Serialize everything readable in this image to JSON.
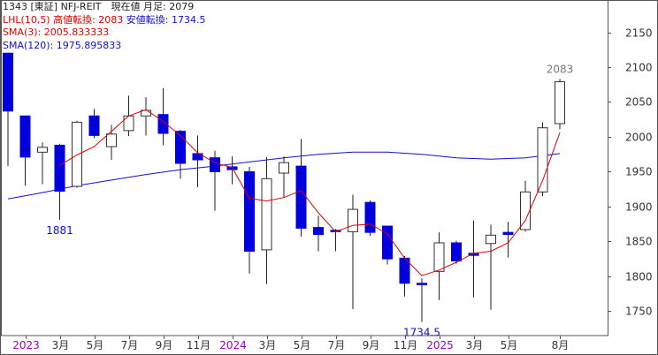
{
  "legend": {
    "line1": "1343 [東証] NFJ-REIT　現在値 月足: 2079",
    "line2_prefix": "LHL(10,5) 高値転換: 2083",
    "line2_suffix": "安値転換: 1734.5",
    "line3": "SMA(3): 2005.833333",
    "line4": "SMA(120): 1975.895833"
  },
  "colors": {
    "up_body": "#ffffff",
    "down_body": "#0000dd",
    "wick": "#222222",
    "sma3": "#e00000",
    "sma120": "#1010d0",
    "year_label": "#9900cc",
    "annotation_blue": "#1010d0",
    "annotation_gray": "#777777"
  },
  "chart_data": {
    "type": "candlestick",
    "ylim": [
      1715,
      2195
    ],
    "yticks": [
      1750,
      1800,
      1850,
      1900,
      1950,
      2000,
      2050,
      2100,
      2150
    ],
    "x_labels": [
      {
        "index": 1,
        "text": "2023",
        "year": true
      },
      {
        "index": 3,
        "text": "3月",
        "year": false
      },
      {
        "index": 5,
        "text": "5月",
        "year": false
      },
      {
        "index": 7,
        "text": "7月",
        "year": false
      },
      {
        "index": 9,
        "text": "9月",
        "year": false
      },
      {
        "index": 11,
        "text": "11月",
        "year": false
      },
      {
        "index": 13,
        "text": "2024",
        "year": true
      },
      {
        "index": 15,
        "text": "3月",
        "year": false
      },
      {
        "index": 17,
        "text": "5月",
        "year": false
      },
      {
        "index": 19,
        "text": "7月",
        "year": false
      },
      {
        "index": 21,
        "text": "9月",
        "year": false
      },
      {
        "index": 23,
        "text": "11月",
        "year": false
      },
      {
        "index": 25,
        "text": "2025",
        "year": true
      },
      {
        "index": 27,
        "text": "3月",
        "year": false
      },
      {
        "index": 29,
        "text": "5月",
        "year": false
      },
      {
        "index": 32,
        "text": "8月",
        "year": false
      }
    ],
    "candles": [
      {
        "o": 2120,
        "h": 2120,
        "l": 1958,
        "c": 2037
      },
      {
        "o": 2030,
        "h": 2030,
        "l": 1930,
        "c": 1971
      },
      {
        "o": 1978,
        "h": 1992,
        "l": 1932,
        "c": 1985
      },
      {
        "o": 1988,
        "h": 1990,
        "l": 1881,
        "c": 1922
      },
      {
        "o": 1929,
        "h": 2023,
        "l": 1927,
        "c": 2021
      },
      {
        "o": 2030,
        "h": 2040,
        "l": 1998,
        "c": 2002
      },
      {
        "o": 1986,
        "h": 2017,
        "l": 1967,
        "c": 2004
      },
      {
        "o": 2009,
        "h": 2059,
        "l": 2001,
        "c": 2030
      },
      {
        "o": 2030,
        "h": 2057,
        "l": 2002,
        "c": 2038
      },
      {
        "o": 2032,
        "h": 2070,
        "l": 1988,
        "c": 2005
      },
      {
        "o": 2008,
        "h": 2010,
        "l": 1940,
        "c": 1962
      },
      {
        "o": 1976,
        "h": 2002,
        "l": 1928,
        "c": 1967
      },
      {
        "o": 1970,
        "h": 1980,
        "l": 1894,
        "c": 1950
      },
      {
        "o": 1957,
        "h": 1972,
        "l": 1932,
        "c": 1953
      },
      {
        "o": 1950,
        "h": 1957,
        "l": 1804,
        "c": 1836
      },
      {
        "o": 1838,
        "h": 1971,
        "l": 1789,
        "c": 1940
      },
      {
        "o": 1948,
        "h": 1972,
        "l": 1913,
        "c": 1963
      },
      {
        "o": 1958,
        "h": 1997,
        "l": 1857,
        "c": 1869
      },
      {
        "o": 1870,
        "h": 1887,
        "l": 1836,
        "c": 1860
      },
      {
        "o": 1866,
        "h": 1868,
        "l": 1836,
        "c": 1864
      },
      {
        "o": 1864,
        "h": 1917,
        "l": 1753,
        "c": 1896
      },
      {
        "o": 1906,
        "h": 1909,
        "l": 1858,
        "c": 1863
      },
      {
        "o": 1872,
        "h": 1872,
        "l": 1817,
        "c": 1825
      },
      {
        "o": 1826,
        "h": 1829,
        "l": 1771,
        "c": 1790
      },
      {
        "o": 1790,
        "h": 1797,
        "l": 1734.5,
        "c": 1788
      },
      {
        "o": 1807,
        "h": 1863,
        "l": 1766,
        "c": 1848
      },
      {
        "o": 1848,
        "h": 1851,
        "l": 1818,
        "c": 1822
      },
      {
        "o": 1833,
        "h": 1880,
        "l": 1770,
        "c": 1830
      },
      {
        "o": 1847,
        "h": 1874,
        "l": 1752,
        "c": 1859
      },
      {
        "o": 1863,
        "h": 1878,
        "l": 1827,
        "c": 1860
      },
      {
        "o": 1867,
        "h": 1937,
        "l": 1864,
        "c": 1921
      },
      {
        "o": 1921,
        "h": 2021,
        "l": 1915,
        "c": 2013
      },
      {
        "o": 2019,
        "h": 2083,
        "l": 2011,
        "c": 2079
      }
    ],
    "sma3": [
      [
        3,
        1959
      ],
      [
        4,
        1974
      ],
      [
        5,
        1986
      ],
      [
        6,
        2008
      ],
      [
        7,
        2030
      ],
      [
        8,
        2039
      ],
      [
        9,
        2022
      ],
      [
        10,
        2002
      ],
      [
        11,
        1977
      ],
      [
        12,
        1963
      ],
      [
        13,
        1956
      ],
      [
        14,
        1912
      ],
      [
        15,
        1908
      ],
      [
        16,
        1913
      ],
      [
        17,
        1923
      ],
      [
        18,
        1891
      ],
      [
        19,
        1864
      ],
      [
        20,
        1873
      ],
      [
        21,
        1875
      ],
      [
        22,
        1861
      ],
      [
        23,
        1826
      ],
      [
        24,
        1801
      ],
      [
        25,
        1809
      ],
      [
        26,
        1820
      ],
      [
        27,
        1833
      ],
      [
        28,
        1836
      ],
      [
        29,
        1848
      ],
      [
        30,
        1880
      ],
      [
        31,
        1937
      ],
      [
        32,
        2006
      ]
    ],
    "sma120": [
      [
        0,
        1911
      ],
      [
        2,
        1920
      ],
      [
        4,
        1930
      ],
      [
        6,
        1938
      ],
      [
        8,
        1946
      ],
      [
        10,
        1953
      ],
      [
        12,
        1958
      ],
      [
        14,
        1964
      ],
      [
        16,
        1970
      ],
      [
        18,
        1975
      ],
      [
        20,
        1978
      ],
      [
        22,
        1978
      ],
      [
        24,
        1975
      ],
      [
        26,
        1970
      ],
      [
        28,
        1968
      ],
      [
        30,
        1970
      ],
      [
        32,
        1976
      ]
    ],
    "annotations": [
      {
        "index": 3,
        "value": 1881,
        "text": "1881",
        "pos": "below",
        "color": "annotation_blue"
      },
      {
        "index": 24,
        "value": 1734.5,
        "text": "1734.5",
        "pos": "below",
        "color": "annotation_blue"
      },
      {
        "index": 32,
        "value": 2083,
        "text": "2083",
        "pos": "above",
        "color": "annotation_gray"
      }
    ]
  }
}
